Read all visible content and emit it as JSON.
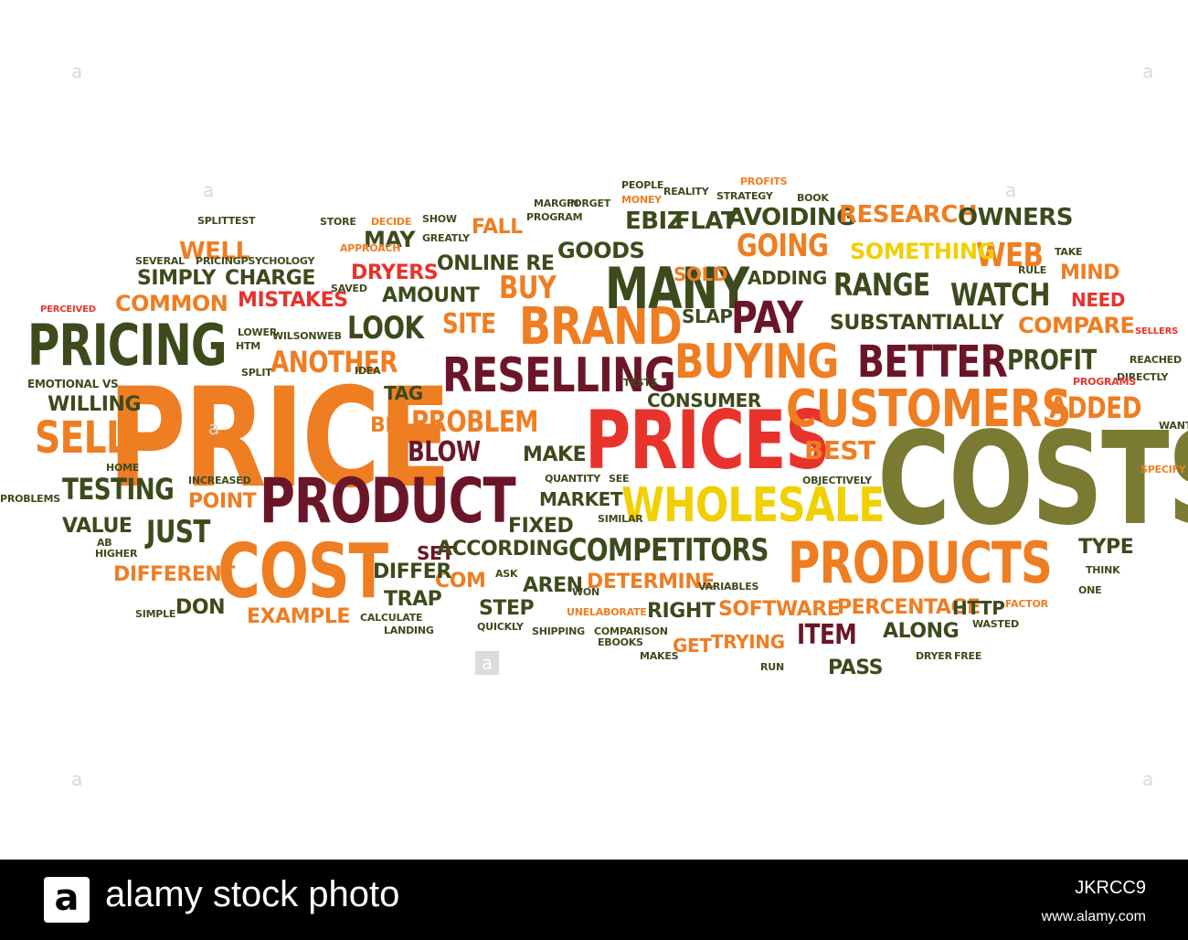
{
  "words": [
    "PRICE",
    "COSTS",
    "PRICES",
    "PRODUCT",
    "COST",
    "PRODUCTS",
    "PRICING",
    "RESELLING",
    "CUSTOMERS",
    "BUYING",
    "BETTER",
    "BRAND",
    "MANY",
    "WHOLESALE",
    "COMPETITORS",
    "PAY",
    "SELL",
    "TESTING",
    "JUST",
    "PROBLEM",
    "ANOTHER",
    "LOOK",
    "WATCH",
    "WEB",
    "GOING",
    "RANGE",
    "AVOIDING",
    "RESEARCH",
    "OWNERS",
    "SOMETHING",
    "PROFIT",
    "COMPARE",
    "ADDED",
    "SUBSTANTIALLY",
    "MISTAKES",
    "COMMON",
    "CHARGE",
    "SIMPLY",
    "WELL",
    "DRYERS",
    "ONLINE RE",
    "GOODS",
    "EBIZ",
    "FLAT",
    "SOLD",
    "ADDING",
    "SLAP",
    "AMOUNT",
    "BUY",
    "SITE",
    "MAY",
    "FALL",
    "CONSUMER",
    "BEST",
    "BLOW",
    "TAG",
    "BIZ",
    "MAKE",
    "POINT",
    "VALUE",
    "DIFFERENT",
    "DON",
    "EXAMPLE",
    "FIXED",
    "MARKET",
    "SET",
    "ACCORDING",
    "COM",
    "DIFFER",
    "TRAP",
    "STEP",
    "AREN",
    "DETERMINE",
    "RIGHT",
    "SOFTWARE",
    "PERCENTAGE",
    "HTTP",
    "ITEM",
    "ALONG",
    "TRYING",
    "GET",
    "PASS",
    "TYPE",
    "MIND",
    "NEED",
    "WILLING",
    "WILSONWEB",
    "LOWER",
    "HTM",
    "SPLIT",
    "EMOTIONAL VS",
    "PERCEIVED",
    "SEVERAL",
    "PRICINGPSYCHOLOGY",
    "SPLITTEST",
    "STORE",
    "DECIDE",
    "SHOW",
    "GREATLY",
    "MARGIN",
    "FORGET",
    "MONEY",
    "PEOPLE",
    "PROGRAM",
    "APPROACH",
    "SAVED",
    "IDEA",
    "TESTS",
    "REALITY",
    "PROFITS",
    "STRATEGY",
    "BOOK",
    "TAKE",
    "RULE",
    "SELLERS",
    "REACHED",
    "DIRECTLY",
    "PROGRAMS",
    "WANT",
    "SPECIFY",
    "OBJECTIVELY",
    "QUANTITY",
    "SEE",
    "INCREASED",
    "HOME",
    "AB",
    "PROBLEMS",
    "HIGHER",
    "SIMPLE",
    "CALCULATE",
    "LANDING",
    "QUICKLY",
    "UNELABORATE",
    "SHIPPING",
    "COMPARISON",
    "EBOOKS",
    "MAKES",
    "WON",
    "ASK",
    "SIMILAR",
    "VARIABLES",
    "WASTED",
    "DRYER",
    "FREE",
    "RUN",
    "FACTOR",
    "ONE",
    "THINK"
  ],
  "palette": {
    "dark_green": "#3d4a1c",
    "olive": "#7b7a33",
    "orange": "#ef7d22",
    "red": "#e8322c",
    "maroon": "#6b1628",
    "yellow": "#f0d000"
  },
  "watermark_glyph": "a",
  "footer": {
    "logo_letter": "a",
    "brand_text": "alamy stock photo",
    "image_id": "JKRCC9",
    "site": "www.alamy.com"
  }
}
